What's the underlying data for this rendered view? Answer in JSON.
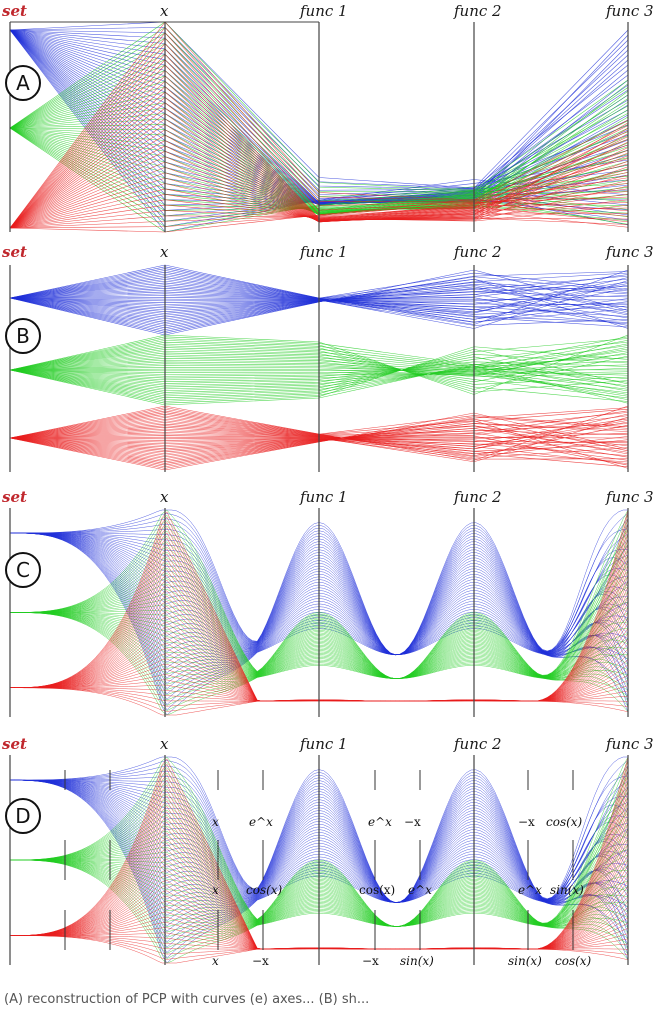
{
  "axis_headers": [
    "set",
    "x",
    "func 1",
    "func 2",
    "func 3"
  ],
  "colors": {
    "blue": "#1f2fd8",
    "green": "#22cc22",
    "red": "#e81e1e",
    "set_label": "#c0272d"
  },
  "panels": [
    {
      "id": "A",
      "label": "A"
    },
    {
      "id": "B",
      "label": "B"
    },
    {
      "id": "C",
      "label": "C"
    },
    {
      "id": "D",
      "label": "D",
      "function_labels": {
        "blue": [
          "x",
          "e^x",
          "e^x",
          "−x",
          "−x",
          "cos(x)"
        ],
        "green": [
          "x",
          "cos(x)",
          "cos(x)",
          "e^x",
          "e^x",
          "sin(x)"
        ],
        "red": [
          "x",
          "−x",
          "−x",
          "sin(x)",
          "sin(x)",
          "cos(x)"
        ]
      }
    }
  ],
  "caption": "(A) reconstruction of PCP with curves (e) axes... (B) sh..."
}
